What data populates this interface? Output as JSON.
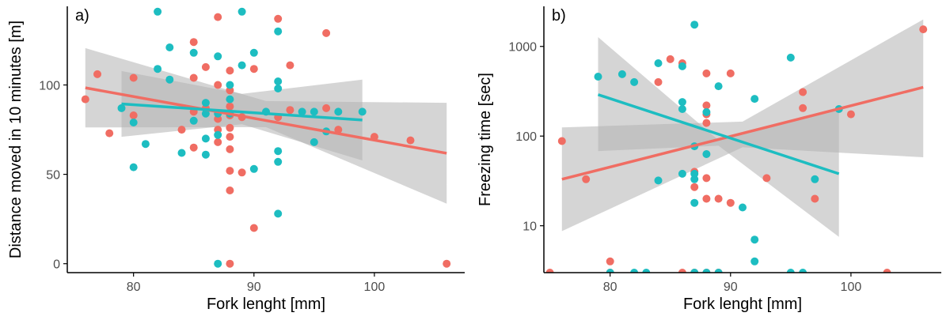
{
  "colors": {
    "red": "#f06d63",
    "cyan": "#1dbdc1",
    "band": "#b3b3b3",
    "axis": "#000000",
    "tick_text": "#4d4d4d"
  },
  "chart_data": [
    {
      "type": "scatter",
      "panel_label": "a)",
      "xlabel": "Fork lenght [mm]",
      "ylabel": "Distance moved in 10 minutes [m]",
      "xlim": [
        74.5,
        107.5
      ],
      "ylim": [
        -5,
        144
      ],
      "yscale": "linear",
      "x_ticks": [
        80,
        90,
        100
      ],
      "x_tick_labels": [
        "80",
        "90",
        "100"
      ],
      "y_ticks": [
        0,
        50,
        100
      ],
      "y_tick_labels": [
        "0",
        "50",
        "100"
      ],
      "series": [
        {
          "name": "red",
          "color": "#f06d63",
          "points": [
            [
              76,
              92
            ],
            [
              77,
              106
            ],
            [
              78,
              73
            ],
            [
              80,
              104
            ],
            [
              80,
              83
            ],
            [
              84,
              75
            ],
            [
              85,
              124
            ],
            [
              85,
              104
            ],
            [
              85,
              85
            ],
            [
              85,
              65
            ],
            [
              86,
              110
            ],
            [
              86,
              87
            ],
            [
              87,
              138
            ],
            [
              87,
              100
            ],
            [
              87,
              81
            ],
            [
              87,
              75
            ],
            [
              87,
              68
            ],
            [
              88,
              108
            ],
            [
              88,
              97
            ],
            [
              88,
              88
            ],
            [
              88,
              83
            ],
            [
              88,
              76
            ],
            [
              88,
              71
            ],
            [
              88,
              64
            ],
            [
              88,
              52
            ],
            [
              88,
              41
            ],
            [
              88,
              0
            ],
            [
              89,
              51
            ],
            [
              89,
              82
            ],
            [
              90,
              109
            ],
            [
              90,
              20
            ],
            [
              92,
              137
            ],
            [
              92,
              82
            ],
            [
              93,
              111
            ],
            [
              93,
              86
            ],
            [
              96,
              129
            ],
            [
              96,
              87
            ],
            [
              97,
              75
            ],
            [
              100,
              71
            ],
            [
              103,
              69
            ],
            [
              106,
              0
            ]
          ],
          "fit": {
            "x": [
              76,
              106
            ],
            "y": [
              98.4,
              61.8
            ]
          },
          "band": {
            "x": [
              76,
              91,
              106
            ],
            "upper": [
              120.6,
              91.0,
              90.0
            ],
            "lower": [
              76.2,
              76.4,
              33.6
            ]
          }
        },
        {
          "name": "cyan",
          "color": "#1dbdc1",
          "points": [
            [
              79,
              87
            ],
            [
              80,
              54
            ],
            [
              80,
              79
            ],
            [
              81,
              67
            ],
            [
              82,
              109
            ],
            [
              82,
              141
            ],
            [
              83,
              103
            ],
            [
              83,
              121
            ],
            [
              84,
              62
            ],
            [
              85,
              118
            ],
            [
              85,
              80
            ],
            [
              86,
              90
            ],
            [
              86,
              84
            ],
            [
              86,
              70
            ],
            [
              86,
              61
            ],
            [
              87,
              116
            ],
            [
              87,
              84
            ],
            [
              87,
              72
            ],
            [
              87,
              0
            ],
            [
              88,
              100
            ],
            [
              88,
              92
            ],
            [
              88,
              84
            ],
            [
              89,
              141
            ],
            [
              89,
              111
            ],
            [
              90,
              118
            ],
            [
              90,
              53
            ],
            [
              91,
              85
            ],
            [
              92,
              130
            ],
            [
              92,
              102
            ],
            [
              92,
              98
            ],
            [
              92,
              63
            ],
            [
              92,
              57
            ],
            [
              92,
              28
            ],
            [
              94,
              85
            ],
            [
              95,
              85
            ],
            [
              95,
              68
            ],
            [
              96,
              74
            ],
            [
              97,
              85
            ],
            [
              99,
              85
            ]
          ],
          "fit": {
            "x": [
              79,
              99
            ],
            "y": [
              89.4,
              80.4
            ]
          },
          "band": {
            "x": [
              79,
              89,
              99
            ],
            "upper": [
              107.8,
              95.0,
              103.0
            ],
            "lower": [
              71.0,
              78.0,
              57.8
            ]
          }
        }
      ]
    },
    {
      "type": "scatter",
      "panel_label": "b)",
      "xlabel": "Fork lenght [mm]",
      "ylabel": "Freezing time [sec]",
      "xlim": [
        74.5,
        107.5
      ],
      "ylim": [
        3,
        2800
      ],
      "yscale": "log",
      "x_ticks": [
        80,
        90,
        100
      ],
      "x_tick_labels": [
        "80",
        "90",
        "100"
      ],
      "y_ticks": [
        10,
        100,
        1000
      ],
      "y_tick_labels": [
        "10",
        "100",
        "1000"
      ],
      "series": [
        {
          "name": "red",
          "color": "#f06d63",
          "points": [
            [
              75,
              3
            ],
            [
              76,
              88
            ],
            [
              78,
              33
            ],
            [
              80,
              4
            ],
            [
              80,
              3
            ],
            [
              84,
              400
            ],
            [
              85,
              720
            ],
            [
              86,
              650
            ],
            [
              86,
              3
            ],
            [
              87,
              40
            ],
            [
              87,
              27
            ],
            [
              87,
              3
            ],
            [
              88,
              500
            ],
            [
              88,
              220
            ],
            [
              88,
              175
            ],
            [
              88,
              140
            ],
            [
              88,
              34
            ],
            [
              88,
              20
            ],
            [
              88,
              3
            ],
            [
              89,
              20
            ],
            [
              89,
              3
            ],
            [
              90,
              500
            ],
            [
              90,
              18
            ],
            [
              93,
              34
            ],
            [
              96,
              310
            ],
            [
              96,
              205
            ],
            [
              97,
              20
            ],
            [
              100,
              175
            ],
            [
              103,
              3
            ],
            [
              106,
              1550
            ]
          ],
          "fit": {
            "x": [
              76,
              106
            ],
            "y": [
              33,
              350
            ]
          },
          "band": {
            "x": [
              76,
              91,
              106
            ],
            "upper": [
              125,
              145,
              2000
            ],
            "lower": [
              8.7,
              75,
              58
            ]
          }
        },
        {
          "name": "cyan",
          "color": "#1dbdc1",
          "points": [
            [
              79,
              460
            ],
            [
              80,
              3
            ],
            [
              81,
              490
            ],
            [
              82,
              400
            ],
            [
              82,
              3
            ],
            [
              83,
              3
            ],
            [
              84,
              650
            ],
            [
              84,
              32
            ],
            [
              86,
              600
            ],
            [
              86,
              240
            ],
            [
              86,
              200
            ],
            [
              86,
              38
            ],
            [
              87,
              1750
            ],
            [
              87,
              77
            ],
            [
              87,
              38
            ],
            [
              87,
              33
            ],
            [
              87,
              18
            ],
            [
              87,
              3
            ],
            [
              88,
              185
            ],
            [
              88,
              63
            ],
            [
              88,
              3
            ],
            [
              89,
              360
            ],
            [
              89,
              3
            ],
            [
              91,
              16
            ],
            [
              92,
              260
            ],
            [
              92,
              7
            ],
            [
              92,
              4
            ],
            [
              95,
              750
            ],
            [
              95,
              3
            ],
            [
              96,
              3
            ],
            [
              97,
              33
            ],
            [
              99,
              200
            ]
          ],
          "fit": {
            "x": [
              79,
              99
            ],
            "y": [
              290,
              38
            ]
          },
          "band": {
            "x": [
              79,
              89,
              99
            ],
            "upper": [
              1270,
              90,
              200
            ],
            "lower": [
              68,
              78,
              7.5
            ]
          }
        }
      ]
    }
  ]
}
